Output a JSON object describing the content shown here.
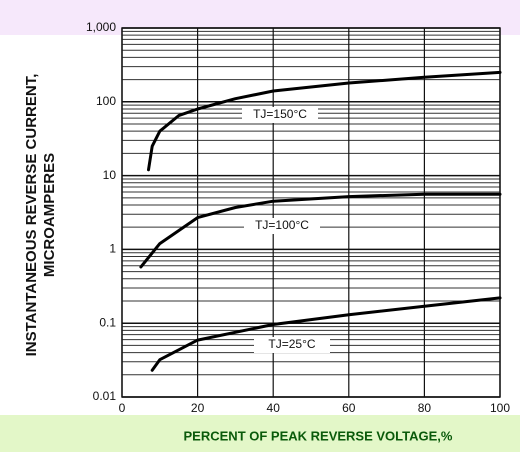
{
  "chart_data": {
    "type": "line",
    "xlabel": "PERCENT OF PEAK REVERSE VOLTAGE,%",
    "ylabel": [
      "INSTANTANEOUS REVERSE CURRENT,",
      "MICROAMPERES"
    ],
    "xlim": [
      0,
      100
    ],
    "xticks": [
      0,
      20,
      40,
      60,
      80,
      100
    ],
    "ylim": [
      0.01,
      1000
    ],
    "yscale": "log",
    "yticks": [
      {
        "value": 1000,
        "label": "1,000"
      },
      100,
      10,
      1,
      0.1,
      0.01
    ],
    "grid": true,
    "minor_grid": true,
    "series": [
      {
        "name": "TJ=150°C",
        "color": "#000000",
        "x": [
          7,
          8,
          10,
          15,
          20,
          30,
          40,
          60,
          80,
          100
        ],
        "values": [
          12,
          25,
          40,
          65,
          80,
          110,
          140,
          180,
          215,
          250
        ]
      },
      {
        "name": "TJ=100°C",
        "color": "#000000",
        "x": [
          5,
          10,
          15,
          20,
          30,
          40,
          60,
          80,
          100
        ],
        "values": [
          0.58,
          1.2,
          1.8,
          2.7,
          3.7,
          4.5,
          5.2,
          5.6,
          5.6
        ]
      },
      {
        "name": "TJ=25°C",
        "color": "#000000",
        "x": [
          8,
          10,
          20,
          40,
          60,
          80,
          100
        ],
        "values": [
          0.023,
          0.032,
          0.059,
          0.096,
          0.13,
          0.17,
          0.22
        ]
      }
    ]
  }
}
